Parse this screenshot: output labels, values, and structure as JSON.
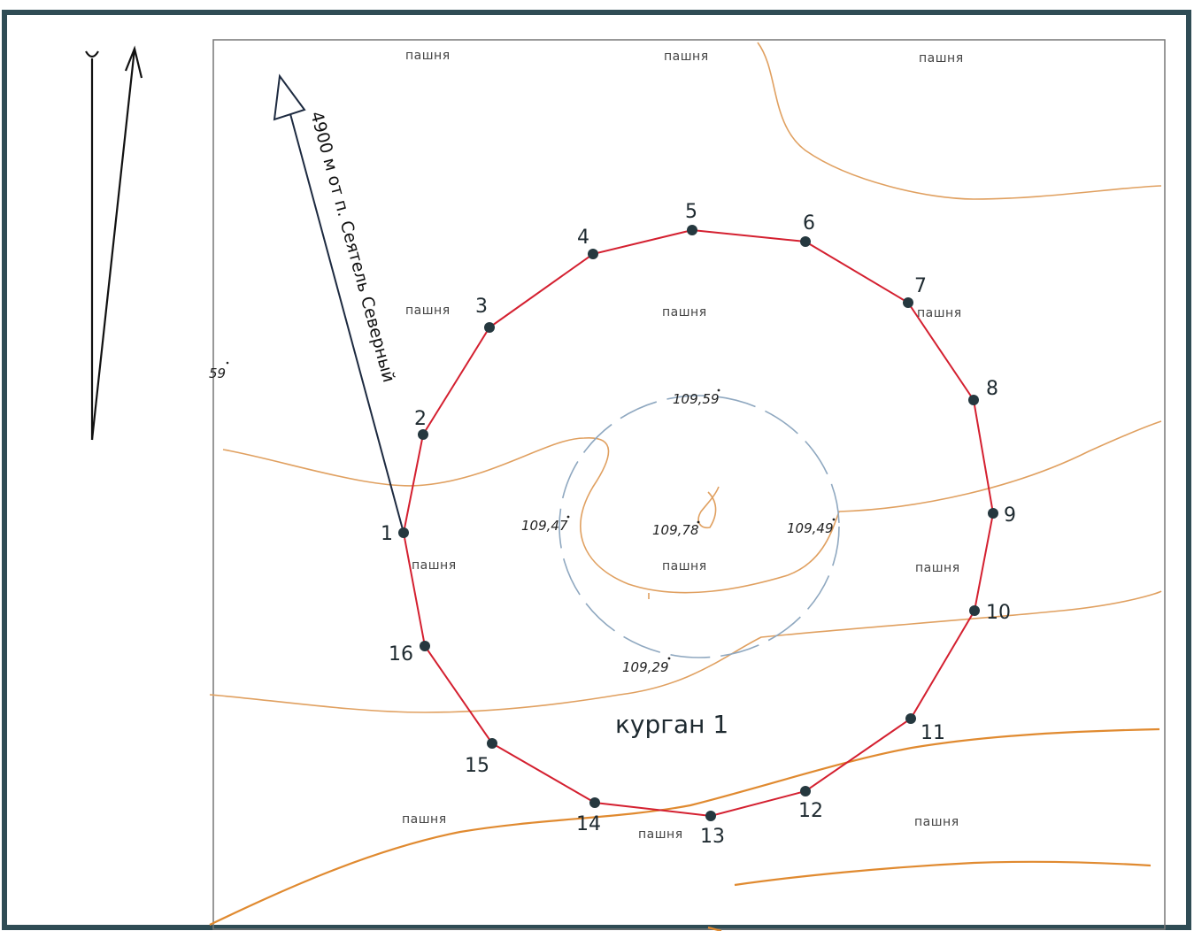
{
  "map": {
    "title": "курган 1",
    "bearing_label": "4900 м от п. Сеятель Северный",
    "land_label": "пашня",
    "edge_fragment": "59",
    "colors": {
      "outline": "#d42030",
      "contour": "#e0a060",
      "contour_strong": "#e08a30",
      "aux_contour": "#8fa8c0",
      "point": "#25383f",
      "frame_border": "#2f4c55"
    },
    "boundary_points": [
      {
        "label": "1"
      },
      {
        "label": "2"
      },
      {
        "label": "3"
      },
      {
        "label": "4"
      },
      {
        "label": "5"
      },
      {
        "label": "6"
      },
      {
        "label": "7"
      },
      {
        "label": "8"
      },
      {
        "label": "9"
      },
      {
        "label": "10"
      },
      {
        "label": "11"
      },
      {
        "label": "12"
      },
      {
        "label": "13"
      },
      {
        "label": "14"
      },
      {
        "label": "15"
      },
      {
        "label": "16"
      }
    ],
    "elevations": [
      {
        "value": "109,59"
      },
      {
        "value": "109,47"
      },
      {
        "value": "109,78"
      },
      {
        "value": "109,49"
      },
      {
        "value": "109,29"
      }
    ]
  }
}
